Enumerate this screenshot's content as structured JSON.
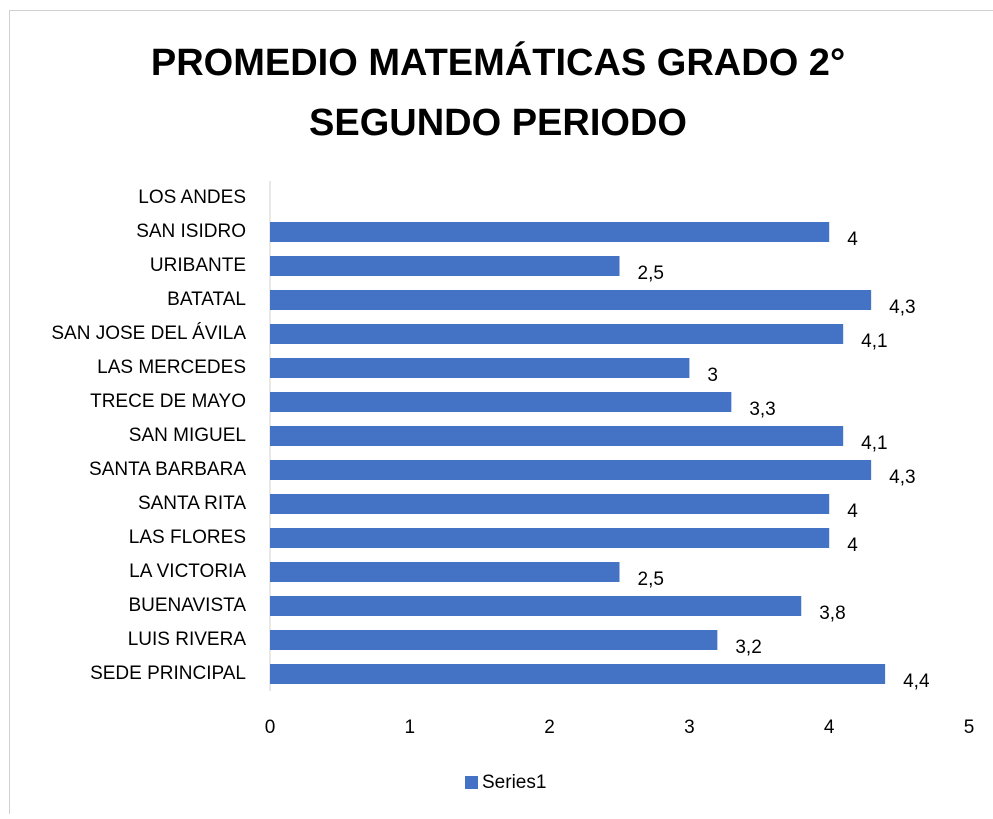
{
  "chart_data": {
    "type": "bar",
    "orientation": "horizontal",
    "title": [
      "PROMEDIO MATEMÁTICAS GRADO 2°",
      "SEGUNDO PERIODO"
    ],
    "categories": [
      "SEDE PRINCIPAL",
      "LUIS RIVERA",
      "BUENAVISTA",
      "LA VICTORIA",
      "LAS FLORES",
      "SANTA RITA",
      "SANTA BARBARA",
      "SAN MIGUEL",
      "TRECE DE MAYO",
      "LAS MERCEDES",
      "SAN JOSE DEL ÁVILA",
      "BATATAL",
      "URIBANTE",
      "SAN ISIDRO",
      "LOS ANDES"
    ],
    "series": [
      {
        "name": "Series1",
        "color": "#4472c4",
        "values": [
          4.4,
          3.2,
          3.8,
          2.5,
          4,
          4,
          4.3,
          4.1,
          3.3,
          3,
          4.1,
          4.3,
          2.5,
          4,
          null
        ],
        "value_labels": [
          "4,4",
          "3,2",
          "3,8",
          "2,5",
          "4",
          "4",
          "4,3",
          "4,1",
          "3,3",
          "3",
          "4,1",
          "4,3",
          "2,5",
          "4",
          null
        ]
      }
    ],
    "xlim": [
      0,
      5
    ],
    "xticks": [
      0,
      1,
      2,
      3,
      4,
      5
    ],
    "grid": false,
    "legend": "bottom"
  }
}
